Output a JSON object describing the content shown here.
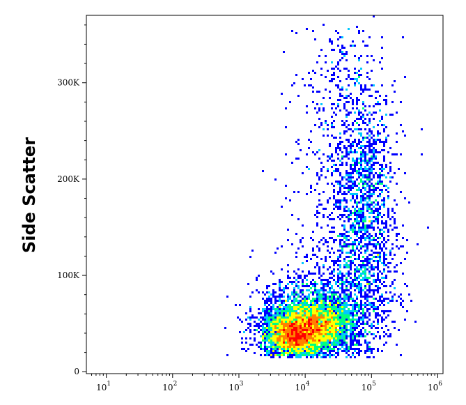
{
  "chart_data": {
    "type": "scatter",
    "subtype": "flow-cytometry-density-dot-plot",
    "title": "",
    "xlabel": "",
    "ylabel": "Side Scatter",
    "x_scale": "log",
    "xlim": [
      5,
      1200000
    ],
    "ylim": [
      -2000,
      370000
    ],
    "x_ticks": [
      {
        "base": "10",
        "exp": "1",
        "value": 10
      },
      {
        "base": "10",
        "exp": "2",
        "value": 100
      },
      {
        "base": "10",
        "exp": "3",
        "value": 1000
      },
      {
        "base": "10",
        "exp": "4",
        "value": 10000
      },
      {
        "base": "10",
        "exp": "5",
        "value": 100000
      },
      {
        "base": "10",
        "exp": "6",
        "value": 1000000
      }
    ],
    "y_ticks": [
      {
        "label": "0",
        "value": 0
      },
      {
        "label": "100K",
        "value": 100000
      },
      {
        "label": "200K",
        "value": 200000
      },
      {
        "label": "300K",
        "value": 300000
      }
    ],
    "grid": false,
    "legend": "none",
    "color_scale": [
      "#0000ff",
      "#00c8ff",
      "#00ff80",
      "#ffff00",
      "#ff8000",
      "#ff0000"
    ],
    "populations": [
      {
        "x_center": 7000,
        "y_center": 38000,
        "x_log_sd": 0.22,
        "y_sd": 11000,
        "weight": 0.3
      },
      {
        "x_center": 17000,
        "y_center": 50000,
        "x_log_sd": 0.22,
        "y_sd": 12000,
        "weight": 0.15
      },
      {
        "x_center": 10000,
        "y_center": 50000,
        "x_log_sd": 0.35,
        "y_sd": 22000,
        "weight": 0.25
      },
      {
        "x_center": 60000,
        "y_center": 90000,
        "x_log_sd": 0.3,
        "y_sd": 45000,
        "weight": 0.13
      },
      {
        "x_center": 80000,
        "y_center": 190000,
        "x_log_sd": 0.22,
        "y_sd": 45000,
        "weight": 0.1
      },
      {
        "x_center": 40000,
        "y_center": 280000,
        "x_log_sd": 0.35,
        "y_sd": 50000,
        "weight": 0.04
      },
      {
        "x_center": 30000,
        "y_center": 140000,
        "x_log_sd": 0.45,
        "y_sd": 90000,
        "weight": 0.03
      }
    ],
    "event_count": 9000
  }
}
